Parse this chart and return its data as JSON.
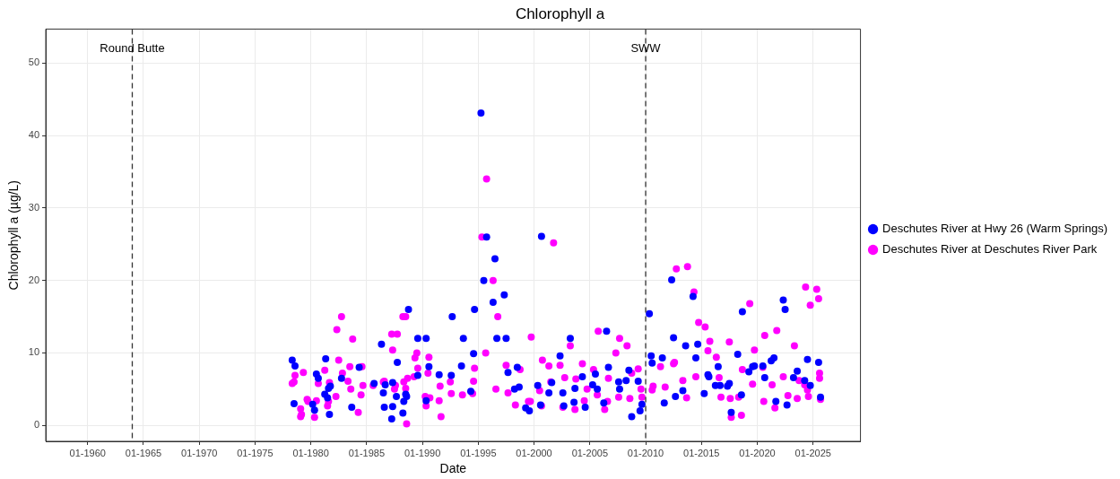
{
  "chart_data": {
    "type": "scatter",
    "title": "Chlorophyll a",
    "xlabel": "Date",
    "ylabel": "Chlorophyll a (µg/L)",
    "marker": "circle",
    "grid": true,
    "legend": "right",
    "xlim": [
      "1956-04",
      "2029-04"
    ],
    "ylim": [
      -2.2,
      54.7
    ],
    "xticks": [
      {
        "value": "1960-01",
        "label": "01-1960"
      },
      {
        "value": "1965-01",
        "label": "01-1965"
      },
      {
        "value": "1970-01",
        "label": "01-1970"
      },
      {
        "value": "1975-01",
        "label": "01-1975"
      },
      {
        "value": "1980-01",
        "label": "01-1980"
      },
      {
        "value": "1985-01",
        "label": "01-1985"
      },
      {
        "value": "1990-01",
        "label": "01-1990"
      },
      {
        "value": "1995-01",
        "label": "01-1995"
      },
      {
        "value": "2000-01",
        "label": "01-2000"
      },
      {
        "value": "2005-01",
        "label": "01-2005"
      },
      {
        "value": "2010-01",
        "label": "01-2010"
      },
      {
        "value": "2015-01",
        "label": "01-2015"
      },
      {
        "value": "2020-01",
        "label": "01-2020"
      },
      {
        "value": "2025-01",
        "label": "01-2025"
      }
    ],
    "yticks": [
      0,
      10,
      20,
      30,
      40,
      50
    ],
    "ref_lines": [
      {
        "axis": "x",
        "value": "1964-01",
        "label": "Round Butte",
        "color": "#333333",
        "line_style": "dashed"
      },
      {
        "axis": "x",
        "value": "2010-01",
        "label": "SWW",
        "color": "#333333",
        "line_style": "dashed"
      }
    ],
    "series": [
      {
        "name": "Deschutes River at Hwy 26 (Warm Springs)",
        "color": "#0000ff",
        "x": [
          "1978-05",
          "1978-08",
          "1978-07",
          "1980-03",
          "1980-05",
          "1980-07",
          "1980-09",
          "1981-04",
          "1981-05",
          "1981-07",
          "1981-08",
          "1981-09",
          "1981-10",
          "1982-10",
          "1983-09",
          "1984-05",
          "1985-09",
          "1986-05",
          "1986-07",
          "1986-08",
          "1986-09",
          "1987-04",
          "1987-05",
          "1987-05",
          "1987-09",
          "1987-10",
          "1988-05",
          "1988-04",
          "1988-07",
          "1988-08",
          "1988-10",
          "1989-08",
          "1989-08",
          "1990-05",
          "1990-05",
          "1990-08",
          "1991-07",
          "1992-08",
          "1992-09",
          "1993-07",
          "1993-09",
          "1994-05",
          "1994-08",
          "1994-09",
          "1995-04",
          "1995-07",
          "1995-10",
          "1996-05",
          "1996-07",
          "1996-09",
          "1997-05",
          "1997-07",
          "1997-09",
          "1998-04",
          "1998-07",
          "1998-09",
          "1999-04",
          "1999-08",
          "2000-05",
          "2000-08",
          "2000-09",
          "2001-05",
          "2001-08",
          "2002-05",
          "2002-08",
          "2002-09",
          "2003-04",
          "2003-08",
          "2003-09",
          "2004-05",
          "2004-08",
          "2005-04",
          "2005-07",
          "2005-09",
          "2006-04",
          "2006-07",
          "2006-09",
          "2007-08",
          "2007-09",
          "2008-04",
          "2008-07",
          "2008-10",
          "2009-05",
          "2009-07",
          "2009-09",
          "2010-05",
          "2010-07",
          "2010-08",
          "2011-07",
          "2011-09",
          "2012-05",
          "2012-07",
          "2012-09",
          "2013-05",
          "2013-08",
          "2014-04",
          "2014-07",
          "2014-09",
          "2015-04",
          "2015-08",
          "2015-09",
          "2016-04",
          "2016-07",
          "2016-09",
          "2017-05",
          "2017-07",
          "2017-09",
          "2018-04",
          "2018-08",
          "2018-09",
          "2019-04",
          "2019-08",
          "2019-10",
          "2020-07",
          "2020-09",
          "2021-04",
          "2021-07",
          "2021-09",
          "2022-05",
          "2022-07",
          "2022-09",
          "2023-04",
          "2023-08",
          "2024-04",
          "2024-07",
          "2024-10",
          "2025-07",
          "2025-09"
        ],
        "values": [
          9.0,
          8.2,
          3.0,
          2.9,
          2.1,
          7.1,
          6.5,
          4.3,
          9.2,
          3.8,
          5.1,
          1.5,
          5.4,
          6.5,
          2.5,
          8.0,
          5.8,
          11.2,
          4.5,
          2.5,
          5.6,
          0.9,
          2.6,
          5.9,
          4.0,
          8.7,
          3.3,
          1.7,
          4.3,
          4.0,
          16.0,
          6.9,
          12.0,
          12.0,
          3.4,
          8.1,
          7.0,
          6.9,
          15.0,
          8.2,
          12.0,
          4.7,
          9.9,
          16.0,
          43.1,
          20.0,
          26.0,
          17.0,
          23.0,
          12.0,
          18.0,
          12.0,
          7.3,
          5.0,
          8.0,
          5.3,
          2.4,
          2.0,
          5.5,
          2.8,
          26.1,
          4.5,
          5.9,
          9.6,
          4.5,
          2.7,
          12.0,
          3.2,
          5.1,
          6.7,
          2.5,
          5.6,
          7.1,
          5.0,
          3.1,
          13.0,
          8.0,
          6.0,
          5.0,
          6.2,
          7.6,
          1.2,
          6.1,
          2.0,
          2.9,
          15.4,
          9.6,
          8.6,
          9.3,
          3.1,
          20.1,
          12.1,
          4.0,
          4.8,
          11.0,
          17.8,
          9.3,
          11.2,
          4.4,
          7.0,
          6.7,
          5.5,
          8.1,
          5.5,
          5.4,
          5.8,
          1.8,
          9.8,
          4.2,
          15.7,
          7.4,
          8.1,
          8.2,
          8.2,
          6.6,
          8.9,
          9.3,
          3.3,
          17.3,
          16.0,
          2.8,
          6.6,
          7.5,
          6.2,
          9.1,
          5.5,
          8.7,
          3.9
        ]
      },
      {
        "name": "Deschutes River at Deschutes River Park",
        "color": "#ff00ff",
        "x": [
          "1978-07",
          "1978-05",
          "1978-08",
          "1979-02",
          "1979-02",
          "1979-03",
          "1979-05",
          "1979-09",
          "1979-10",
          "1980-07",
          "1980-05",
          "1980-09",
          "1981-04",
          "1981-07",
          "1981-08",
          "1981-09",
          "1982-04",
          "1982-05",
          "1982-07",
          "1982-10",
          "1982-11",
          "1983-05",
          "1983-07",
          "1983-08",
          "1983-10",
          "1984-04",
          "1984-07",
          "1984-08",
          "1984-09",
          "1985-08",
          "1986-07",
          "1986-08",
          "1987-04",
          "1987-05",
          "1987-07",
          "1987-08",
          "1987-10",
          "1988-04",
          "1988-07",
          "1988-05",
          "1988-07",
          "1988-08",
          "1988-09",
          "1989-04",
          "1989-07",
          "1989-05",
          "1989-08",
          "1990-05",
          "1990-07",
          "1990-08",
          "1990-04",
          "1990-09",
          "1991-07",
          "1991-08",
          "1991-09",
          "1992-07",
          "1992-08",
          "1993-08",
          "1994-07",
          "1994-08",
          "1994-09",
          "1995-05",
          "1995-09",
          "1995-10",
          "1996-05",
          "1996-08",
          "1996-10",
          "1997-07",
          "1997-09",
          "1998-05",
          "1998-10",
          "1999-07",
          "1999-09",
          "1999-10",
          "2000-07",
          "2000-09",
          "2000-10",
          "2001-05",
          "2001-07",
          "2001-10",
          "2002-05",
          "2002-08",
          "2002-10",
          "2003-04",
          "2003-09",
          "2003-10",
          "2004-05",
          "2004-07",
          "2004-10",
          "2005-05",
          "2005-09",
          "2005-10",
          "2006-05",
          "2006-08",
          "2006-09",
          "2007-05",
          "2007-08",
          "2007-09",
          "2008-05",
          "2008-08",
          "2008-10",
          "2009-05",
          "2009-08",
          "2009-09",
          "2010-08",
          "2010-09",
          "2011-05",
          "2011-10",
          "2012-07",
          "2012-08",
          "2012-10",
          "2013-05",
          "2013-09",
          "2013-10",
          "2014-05",
          "2014-07",
          "2014-10",
          "2015-05",
          "2015-08",
          "2015-10",
          "2016-05",
          "2016-08",
          "2016-10",
          "2017-07",
          "2017-08",
          "2017-09",
          "2018-05",
          "2018-08",
          "2018-09",
          "2019-05",
          "2019-08",
          "2019-10",
          "2020-07",
          "2020-08",
          "2020-09",
          "2021-05",
          "2021-08",
          "2021-10",
          "2022-05",
          "2022-10",
          "2023-05",
          "2023-08",
          "2023-10",
          "2024-04",
          "2024-05",
          "2024-07",
          "2024-08",
          "2024-10",
          "2025-05",
          "2025-07",
          "2025-08",
          "2025-08",
          "2025-09"
        ],
        "values": [
          6.0,
          5.8,
          6.9,
          2.3,
          1.2,
          1.5,
          7.3,
          3.6,
          3.3,
          3.4,
          1.1,
          5.8,
          7.6,
          2.7,
          3.3,
          5.9,
          4.0,
          13.2,
          9.0,
          15.0,
          7.2,
          6.1,
          8.1,
          5.0,
          11.9,
          1.8,
          4.2,
          8.1,
          5.5,
          5.5,
          6.0,
          6.1,
          12.6,
          10.4,
          5.0,
          5.5,
          12.6,
          15.0,
          15.0,
          6.0,
          5.1,
          0.2,
          6.5,
          6.7,
          10.0,
          9.3,
          7.9,
          2.7,
          7.2,
          9.4,
          4.0,
          3.8,
          3.4,
          5.4,
          1.2,
          6.0,
          4.4,
          4.2,
          4.4,
          6.1,
          7.9,
          26.0,
          10.0,
          34.0,
          20.0,
          5.0,
          15.0,
          8.3,
          4.5,
          2.8,
          7.7,
          3.3,
          3.3,
          12.2,
          4.8,
          2.7,
          9.0,
          8.2,
          6.0,
          25.2,
          8.3,
          2.5,
          6.6,
          11.0,
          2.2,
          6.4,
          8.5,
          3.4,
          5.0,
          7.7,
          4.2,
          13.0,
          2.2,
          3.3,
          6.5,
          10.0,
          3.9,
          12.0,
          11.0,
          3.7,
          7.2,
          7.8,
          5.0,
          3.9,
          4.9,
          5.4,
          8.1,
          5.3,
          8.5,
          8.7,
          21.6,
          6.2,
          3.8,
          21.9,
          18.4,
          6.7,
          14.2,
          13.6,
          10.3,
          11.6,
          9.4,
          6.6,
          3.9,
          11.5,
          3.7,
          1.1,
          3.9,
          1.4,
          7.7,
          16.8,
          5.7,
          10.4,
          8.0,
          3.3,
          12.4,
          5.6,
          2.4,
          13.1,
          6.7,
          4.1,
          11.0,
          3.7,
          6.2,
          5.6,
          19.1,
          4.9,
          4.0,
          16.6,
          18.8,
          17.5,
          7.2,
          6.5,
          3.6
        ]
      }
    ]
  }
}
